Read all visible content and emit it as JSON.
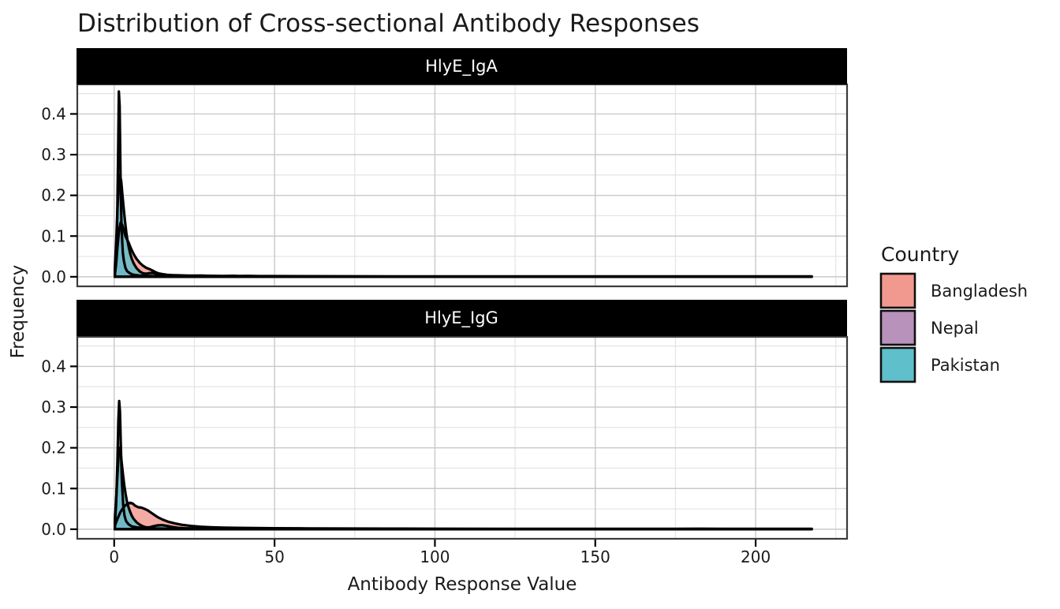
{
  "title": "Distribution of Cross-sectional Antibody Responses",
  "axes": {
    "x_label": "Antibody Response Value",
    "y_label": "Frequency"
  },
  "legend": {
    "title": "Country",
    "entries": [
      {
        "label": "Bangladesh",
        "color": "#F2998F"
      },
      {
        "label": "Nepal",
        "color": "#B892BA"
      },
      {
        "label": "Pakistan",
        "color": "#5FBFCB"
      }
    ]
  },
  "chart_data": {
    "type": "area",
    "subtype": "faceted-density",
    "title": "Distribution of Cross-sectional Antibody Responses",
    "xlabel": "Antibody Response Value",
    "ylabel": "Frequency",
    "xlim": [
      -11.5,
      228.5
    ],
    "ylim": [
      -0.0235,
      0.4725
    ],
    "grid": true,
    "legend_position": "right",
    "x_ticks": [
      {
        "v": 0,
        "label": "0"
      },
      {
        "v": 50,
        "label": "50"
      },
      {
        "v": 100,
        "label": "100"
      },
      {
        "v": 150,
        "label": "150"
      },
      {
        "v": 200,
        "label": "200"
      }
    ],
    "y_ticks": [
      {
        "v": 0,
        "label": "0.0"
      },
      {
        "v": 0.1,
        "label": "0.1"
      },
      {
        "v": 0.2,
        "label": "0.2"
      },
      {
        "v": 0.3,
        "label": "0.3"
      },
      {
        "v": 0.4,
        "label": "0.4"
      }
    ],
    "x_minor": [
      25,
      75,
      125,
      175,
      225
    ],
    "y_minor": [
      0.05,
      0.15,
      0.25,
      0.35,
      0.45
    ],
    "line_color": "#000000",
    "facets": [
      {
        "label": "HlyE_IgA",
        "series": [
          {
            "name": "Bangladesh",
            "color": "#F2998F",
            "points": [
              [
                0.2,
                0.004
              ],
              [
                0.6,
                0.03
              ],
              [
                1.0,
                0.07
              ],
              [
                1.5,
                0.112
              ],
              [
                2.0,
                0.133
              ],
              [
                2.5,
                0.128
              ],
              [
                3.0,
                0.114
              ],
              [
                3.5,
                0.1
              ],
              [
                4.0,
                0.092
              ],
              [
                4.5,
                0.084
              ],
              [
                5.0,
                0.074
              ],
              [
                5.5,
                0.065
              ],
              [
                6.0,
                0.057
              ],
              [
                6.5,
                0.05
              ],
              [
                7.0,
                0.044
              ],
              [
                8.0,
                0.034
              ],
              [
                9.0,
                0.027
              ],
              [
                10.0,
                0.022
              ],
              [
                11.0,
                0.019
              ],
              [
                12.0,
                0.015
              ],
              [
                13.0,
                0.011
              ],
              [
                14.0,
                0.008
              ],
              [
                15.0,
                0.0065
              ],
              [
                16.5,
                0.005
              ],
              [
                18.0,
                0.0042
              ],
              [
                20.0,
                0.0036
              ],
              [
                23.0,
                0.003
              ],
              [
                26.0,
                0.0027
              ],
              [
                30.0,
                0.0024
              ],
              [
                34.0,
                0.0021
              ],
              [
                37.0,
                0.0024
              ],
              [
                39.0,
                0.002
              ],
              [
                42.0,
                0.0022
              ],
              [
                45.0,
                0.0017
              ],
              [
                50.0,
                0.0016
              ],
              [
                60.0,
                0.0015
              ],
              [
                75.0,
                0.0013
              ],
              [
                90.0,
                0.0012
              ],
              [
                110.0,
                0.0012
              ],
              [
                130.0,
                0.0011
              ],
              [
                150.0,
                0.001
              ],
              [
                170.0,
                0.001
              ],
              [
                190.0,
                0.001
              ],
              [
                205.0,
                0.0009
              ],
              [
                217.5,
                0.0009
              ]
            ]
          },
          {
            "name": "Nepal",
            "color": "#B892BA",
            "points": [
              [
                0.2,
                0.01
              ],
              [
                0.6,
                0.05
              ],
              [
                0.9,
                0.12
              ],
              [
                1.2,
                0.28
              ],
              [
                1.45,
                0.455
              ],
              [
                1.7,
                0.42
              ],
              [
                2.0,
                0.24
              ],
              [
                2.3,
                0.12
              ],
              [
                2.7,
                0.06
              ],
              [
                3.0,
                0.04
              ],
              [
                3.5,
                0.022
              ],
              [
                4.0,
                0.014
              ],
              [
                5.0,
                0.008
              ],
              [
                6.0,
                0.005
              ],
              [
                7.5,
                0.0035
              ],
              [
                9.0,
                0.0025
              ],
              [
                11.0,
                0.002
              ],
              [
                14.0,
                0.0015
              ],
              [
                18.0,
                0.0012
              ],
              [
                24.0,
                0.001
              ],
              [
                32.0,
                0.0009
              ],
              [
                45.0,
                0.0008
              ],
              [
                60.0,
                0.0008
              ]
            ]
          },
          {
            "name": "Pakistan",
            "color": "#5FBFCB",
            "points": [
              [
                0.2,
                0.02
              ],
              [
                0.6,
                0.08
              ],
              [
                1.0,
                0.16
              ],
              [
                1.4,
                0.225
              ],
              [
                1.8,
                0.25
              ],
              [
                2.2,
                0.235
              ],
              [
                2.6,
                0.2
              ],
              [
                3.0,
                0.165
              ],
              [
                3.4,
                0.135
              ],
              [
                3.8,
                0.108
              ],
              [
                4.2,
                0.088
              ],
              [
                4.6,
                0.07
              ],
              [
                5.0,
                0.057
              ],
              [
                5.5,
                0.044
              ],
              [
                6.0,
                0.034
              ],
              [
                6.5,
                0.027
              ],
              [
                7.0,
                0.021
              ],
              [
                8.0,
                0.013
              ],
              [
                9.0,
                0.0085
              ],
              [
                10.0,
                0.0075
              ],
              [
                11.0,
                0.009
              ],
              [
                12.0,
                0.0095
              ],
              [
                13.0,
                0.0075
              ],
              [
                14.0,
                0.005
              ],
              [
                15.0,
                0.0035
              ],
              [
                16.5,
                0.0025
              ],
              [
                18.0,
                0.002
              ],
              [
                20.0,
                0.0018
              ],
              [
                22.0,
                0.002
              ],
              [
                25.0,
                0.0026
              ],
              [
                27.0,
                0.0028
              ],
              [
                29.0,
                0.0024
              ],
              [
                31.0,
                0.0016
              ],
              [
                33.0,
                0.001
              ]
            ]
          }
        ]
      },
      {
        "label": "HlyE_IgG",
        "series": [
          {
            "name": "Bangladesh",
            "color": "#F2998F",
            "points": [
              [
                0.2,
                0.008
              ],
              [
                1.0,
                0.025
              ],
              [
                2.0,
                0.043
              ],
              [
                3.0,
                0.055
              ],
              [
                4.0,
                0.062
              ],
              [
                5.0,
                0.065
              ],
              [
                5.8,
                0.063
              ],
              [
                6.5,
                0.058
              ],
              [
                7.5,
                0.054
              ],
              [
                8.5,
                0.053
              ],
              [
                9.5,
                0.05
              ],
              [
                10.5,
                0.046
              ],
              [
                12.0,
                0.038
              ],
              [
                13.5,
                0.03
              ],
              [
                15.0,
                0.024
              ],
              [
                17.0,
                0.018
              ],
              [
                19.0,
                0.014
              ],
              [
                21.0,
                0.011
              ],
              [
                24.0,
                0.008
              ],
              [
                27.0,
                0.0062
              ],
              [
                30.0,
                0.005
              ],
              [
                34.0,
                0.004
              ],
              [
                38.0,
                0.0034
              ],
              [
                44.0,
                0.0028
              ],
              [
                50.0,
                0.0024
              ],
              [
                60.0,
                0.002
              ],
              [
                72.0,
                0.0017
              ],
              [
                85.0,
                0.0015
              ],
              [
                100.0,
                0.0013
              ],
              [
                120.0,
                0.0012
              ],
              [
                140.0,
                0.0011
              ],
              [
                160.0,
                0.001
              ],
              [
                175.0,
                0.0011
              ],
              [
                182.0,
                0.0013
              ],
              [
                190.0,
                0.001
              ],
              [
                205.0,
                0.0009
              ],
              [
                217.5,
                0.0009
              ]
            ]
          },
          {
            "name": "Nepal",
            "color": "#B892BA",
            "points": [
              [
                0.2,
                0.01
              ],
              [
                0.6,
                0.06
              ],
              [
                1.0,
                0.16
              ],
              [
                1.3,
                0.27
              ],
              [
                1.55,
                0.315
              ],
              [
                1.8,
                0.29
              ],
              [
                2.1,
                0.2
              ],
              [
                2.4,
                0.12
              ],
              [
                2.8,
                0.06
              ],
              [
                3.2,
                0.034
              ],
              [
                3.7,
                0.02
              ],
              [
                4.5,
                0.012
              ],
              [
                5.5,
                0.007
              ],
              [
                7.0,
                0.0045
              ],
              [
                9.0,
                0.003
              ],
              [
                12.0,
                0.002
              ],
              [
                16.0,
                0.0015
              ],
              [
                22.0,
                0.0011
              ],
              [
                30.0,
                0.0009
              ],
              [
                40.0,
                0.0008
              ]
            ]
          },
          {
            "name": "Pakistan",
            "color": "#5FBFCB",
            "points": [
              [
                0.2,
                0.025
              ],
              [
                0.6,
                0.07
              ],
              [
                1.0,
                0.13
              ],
              [
                1.4,
                0.185
              ],
              [
                1.7,
                0.2
              ],
              [
                2.0,
                0.19
              ],
              [
                2.4,
                0.16
              ],
              [
                2.8,
                0.13
              ],
              [
                3.2,
                0.105
              ],
              [
                3.6,
                0.085
              ],
              [
                4.0,
                0.068
              ],
              [
                4.5,
                0.053
              ],
              [
                5.0,
                0.042
              ],
              [
                5.5,
                0.033
              ],
              [
                6.0,
                0.026
              ],
              [
                7.0,
                0.017
              ],
              [
                8.0,
                0.011
              ],
              [
                9.0,
                0.007
              ],
              [
                10.0,
                0.0045
              ],
              [
                11.0,
                0.0045
              ],
              [
                12.0,
                0.007
              ],
              [
                13.5,
                0.0095
              ],
              [
                15.0,
                0.01
              ],
              [
                16.5,
                0.008
              ],
              [
                18.0,
                0.0055
              ],
              [
                20.0,
                0.0035
              ],
              [
                22.0,
                0.0025
              ],
              [
                25.0,
                0.0018
              ],
              [
                28.0,
                0.0013
              ],
              [
                31.0,
                0.001
              ]
            ]
          }
        ]
      }
    ]
  }
}
